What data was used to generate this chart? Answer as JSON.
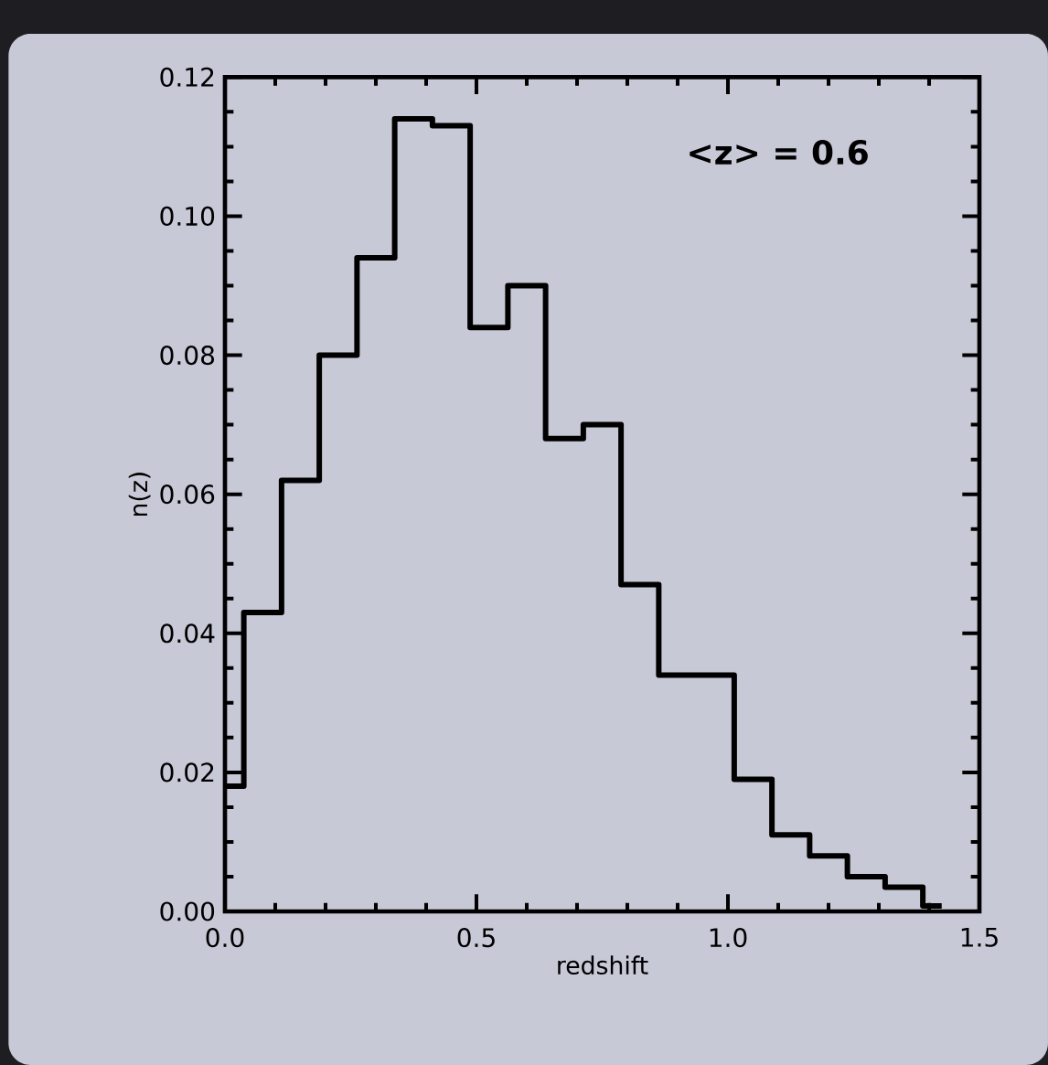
{
  "chart_data": {
    "type": "step",
    "xlabel": "redshift",
    "ylabel": "n(z)",
    "annotations": [
      "<z> = 0.6"
    ],
    "x": [
      0,
      0.0375,
      0.1125,
      0.1875,
      0.2625,
      0.3375,
      0.4125,
      0.4875,
      0.5625,
      0.6375,
      0.7125,
      0.7875,
      0.8625,
      0.9375,
      1.0125,
      1.0875,
      1.1625,
      1.2375,
      1.3125,
      1.3875,
      1.425
    ],
    "values": [
      0.018,
      0.043,
      0.062,
      0.08,
      0.094,
      0.114,
      0.113,
      0.084,
      0.09,
      0.068,
      0.07,
      0.047,
      0.034,
      0.034,
      0.019,
      0.011,
      0.008,
      0.005,
      0.0035,
      0.0008,
      0.0008
    ],
    "color": "#000000",
    "xlim": [
      0,
      1.5
    ],
    "ylim": [
      0,
      0.12
    ],
    "xticks": [
      {
        "value": 0,
        "label": "0.0"
      },
      {
        "value": 0.5,
        "label": "0.5"
      },
      {
        "value": 1.0,
        "label": "1.0"
      },
      {
        "value": 1.5,
        "label": "1.5"
      }
    ],
    "yticks": [
      {
        "value": 0,
        "label": "0.00"
      },
      {
        "value": 0.02,
        "label": "0.02"
      },
      {
        "value": 0.04,
        "label": "0.04"
      },
      {
        "value": 0.06,
        "label": "0.06"
      },
      {
        "value": 0.08,
        "label": "0.08"
      },
      {
        "value": 0.1,
        "label": "0.10"
      },
      {
        "value": 0.12,
        "label": "0.12"
      }
    ]
  }
}
